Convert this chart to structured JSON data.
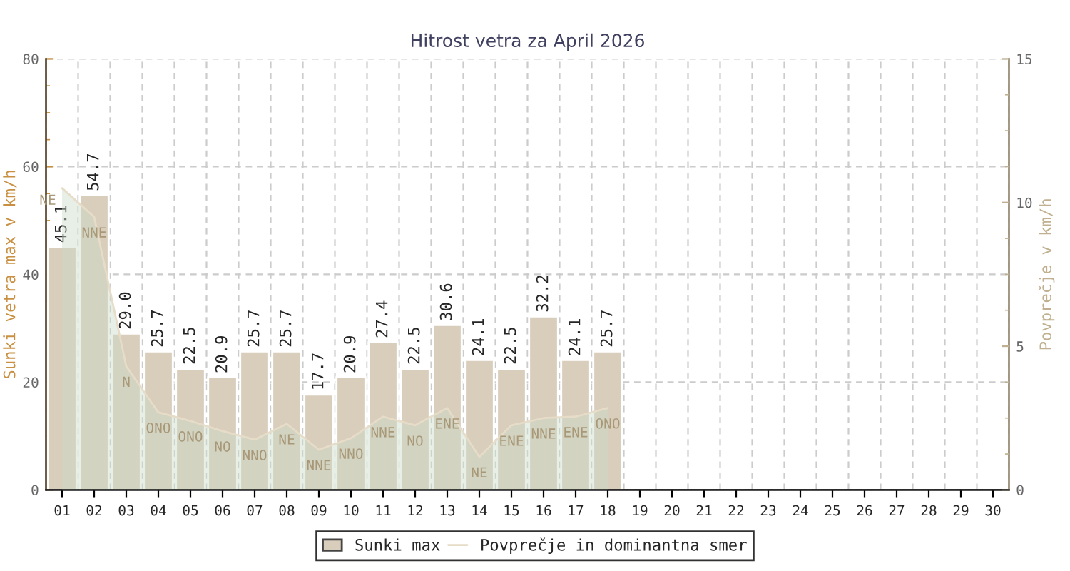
{
  "chart_data": {
    "type": "bar",
    "title": "Hitrost vetra za April 2026",
    "ylabel": "Sunki vetra max v km/h",
    "y2label": "Povprečje v km/h",
    "categories": [
      "01",
      "02",
      "03",
      "04",
      "05",
      "06",
      "07",
      "08",
      "09",
      "10",
      "11",
      "12",
      "13",
      "14",
      "15",
      "16",
      "17",
      "18",
      "19",
      "20",
      "21",
      "22",
      "23",
      "24",
      "25",
      "26",
      "27",
      "28",
      "29",
      "30"
    ],
    "series": [
      {
        "name": "Sunki max",
        "color": "#d9cdbb",
        "values": [
          45.1,
          54.7,
          29.0,
          25.7,
          22.5,
          20.9,
          25.7,
          25.7,
          17.7,
          20.9,
          27.4,
          22.5,
          30.6,
          24.1,
          22.5,
          32.2,
          24.1,
          25.7,
          null,
          null,
          null,
          null,
          null,
          null,
          null,
          null,
          null,
          null,
          null,
          null
        ],
        "value_labels": [
          "45.1",
          "54.7",
          "29.0",
          "25.7",
          "22.5",
          "20.9",
          "25.7",
          "25.7",
          "17.7",
          "20.9",
          "27.4",
          "22.5",
          "30.6",
          "24.1",
          "22.5",
          "32.2",
          "24.1",
          "25.7",
          null,
          null,
          null,
          null,
          null,
          null,
          null,
          null,
          null,
          null,
          null,
          null
        ]
      },
      {
        "name": "Povprečje in dominantna smer",
        "type": "area",
        "axis": "y2",
        "color": "#e6dcc8",
        "values": [
          10.5,
          9.5,
          4.3,
          2.7,
          2.4,
          2.05,
          1.75,
          2.3,
          1.4,
          1.8,
          2.55,
          2.25,
          2.85,
          1.15,
          2.25,
          2.5,
          2.55,
          2.85,
          null,
          null,
          null,
          null,
          null,
          null,
          null,
          null,
          null,
          null,
          null,
          null
        ],
        "value_labels": [
          "NE",
          "NNE",
          "N",
          "ONO",
          "ONO",
          "NO",
          "NNO",
          "NE",
          "NNE",
          "NNO",
          "NNE",
          "NO",
          "ENE",
          "NE",
          "ENE",
          "NNE",
          "ENE",
          "ONO",
          null,
          null,
          null,
          null,
          null,
          null,
          null,
          null,
          null,
          null,
          null,
          null
        ]
      }
    ],
    "ylim": [
      0,
      80
    ],
    "yticks": [
      0,
      20,
      40,
      60,
      80
    ],
    "y2lim": [
      0,
      15
    ],
    "y2ticks": [
      0,
      5,
      10,
      15
    ],
    "grid": true,
    "legend": "bottom"
  }
}
